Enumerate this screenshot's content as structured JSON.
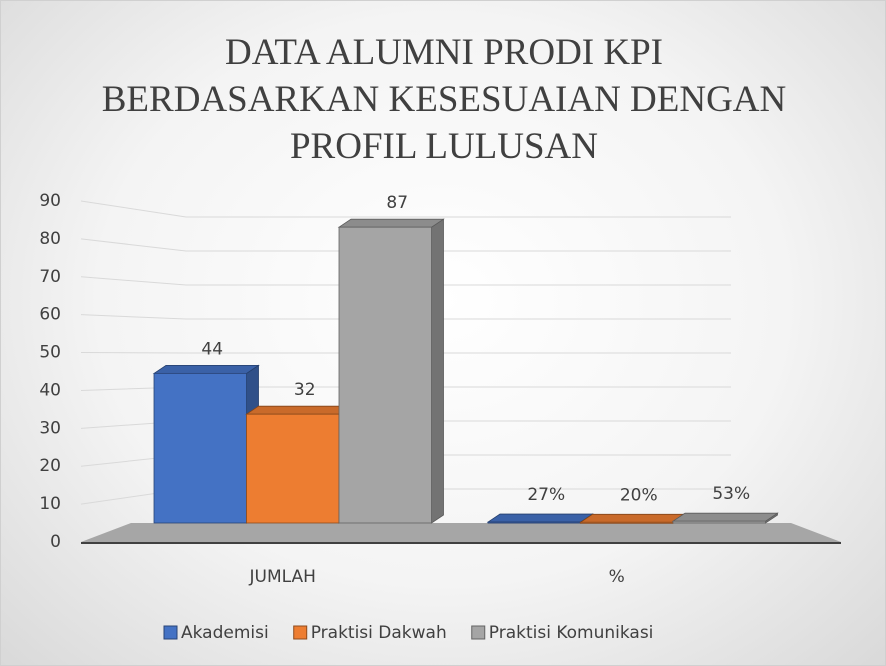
{
  "chart_data": {
    "type": "bar3d",
    "title": "DATA ALUMNI PRODI KPI BERDASARKAN KESESUAIAN DENGAN PROFIL LULUSAN",
    "categories": [
      "JUMLAH",
      "%"
    ],
    "series": [
      {
        "name": "Akademisi",
        "color": "#4472c4",
        "values": [
          44,
          0.27
        ],
        "value_labels": [
          "44",
          "27%"
        ]
      },
      {
        "name": "Praktisi Dakwah",
        "color": "#ed7d31",
        "values": [
          32,
          0.2
        ],
        "value_labels": [
          "32",
          "20%"
        ]
      },
      {
        "name": "Praktisi Komunikasi",
        "color": "#a5a5a5",
        "values": [
          87,
          0.53
        ],
        "value_labels": [
          "87",
          "53%"
        ]
      }
    ],
    "ylim": [
      0,
      90
    ],
    "yticks": [
      0,
      10,
      20,
      30,
      40,
      50,
      60,
      70,
      80,
      90
    ],
    "grid": true,
    "legend": "bottom"
  }
}
